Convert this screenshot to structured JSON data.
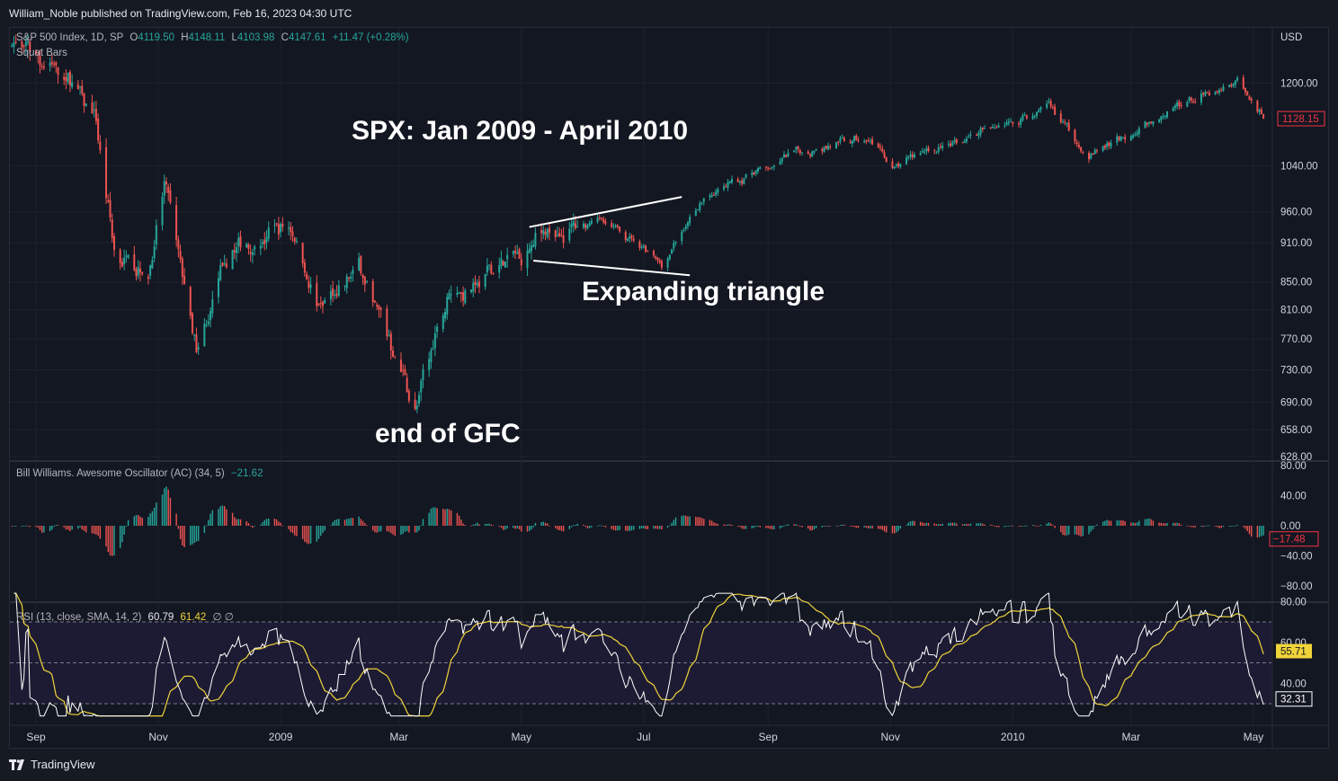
{
  "header": {
    "publisher": "William_Noble published on TradingView.com, Feb 16, 2023 04:30 UTC"
  },
  "footer": {
    "brand": "TradingView"
  },
  "legend_main": {
    "symbol": "S&P 500 Index, 1D, SP",
    "o_label": "O",
    "o": "4119.50",
    "h_label": "H",
    "h": "4148.11",
    "l_label": "L",
    "l": "4103.98",
    "c_label": "C",
    "c": "4147.61",
    "change": "+11.47 (+0.28%)",
    "study": "Squat Bars"
  },
  "legend_ao": {
    "label": "Bill Williams. Awesome Oscillator (AC) (34, 5)",
    "value": "−21.62"
  },
  "legend_rsi": {
    "label": "RSI (13, close, SMA, 14, 2)",
    "value": "60.79",
    "ma_value": "61.42",
    "extra": "∅ ∅"
  },
  "annotations": {
    "title": "SPX: Jan 2009 - April 2010",
    "triangle": "Expanding triangle",
    "gfc": "end of GFC"
  },
  "colors": {
    "up": "#26a69a",
    "down": "#ef5350",
    "rsi": "#ffffff",
    "rsi_ma": "#f0d43a",
    "last_price": "#f23645"
  },
  "chart_data": [
    {
      "type": "candlestick",
      "title": "SPX: Jan 2009 - April 2010",
      "currency": "USD",
      "scale": "log",
      "y_ticks": [
        "1200.00",
        "1040.00",
        "960.00",
        "910.00",
        "850.00",
        "810.00",
        "770.00",
        "730.00",
        "690.00",
        "658.00",
        "628.00"
      ],
      "last_price_label": "1128.15",
      "x_labels": [
        "Sep",
        "Nov",
        "2009",
        "Mar",
        "May",
        "Jul",
        "Sep",
        "Nov",
        "2010",
        "Mar",
        "May"
      ],
      "close_path": {
        "dates": [
          "2008-08-20",
          "2008-09-05",
          "2008-09-20",
          "2008-10-01",
          "2008-10-10",
          "2008-10-27",
          "2008-11-04",
          "2008-11-20",
          "2008-12-08",
          "2009-01-06",
          "2009-01-20",
          "2009-02-09",
          "2009-03-09",
          "2009-03-26",
          "2009-05-01",
          "2009-05-08",
          "2009-06-12",
          "2009-07-10",
          "2009-07-31",
          "2009-09-18",
          "2009-10-21",
          "2009-11-02",
          "2010-01-19",
          "2010-02-08",
          "2010-04-23",
          "2010-05-06"
        ],
        "close": [
          1290,
          1245,
          1210,
          1115,
          900,
          860,
          1005,
          755,
          910,
          935,
          815,
          870,
          680,
          830,
          890,
          925,
          945,
          875,
          985,
          1065,
          1095,
          1040,
          1150,
          1058,
          1215,
          1128
        ]
      },
      "series": [
        {
          "name": "Upper trendline",
          "x": [
            "2009-05-05",
            "2009-07-20"
          ],
          "y": [
            935,
            985
          ]
        },
        {
          "name": "Lower trendline",
          "x": [
            "2009-05-07",
            "2009-07-24"
          ],
          "y": [
            882,
            860
          ]
        }
      ],
      "annotations": [
        "SPX: Jan 2009 - April 2010",
        "Expanding triangle",
        "end of GFC"
      ]
    },
    {
      "type": "bar",
      "title": "Bill Williams. Awesome Oscillator (AC) (34, 5)",
      "y_ticks": [
        "80.00",
        "40.00",
        "0.00",
        "−40.00",
        "−80.00"
      ],
      "last_value_label": "−17.48",
      "extremes": {
        "max": 48,
        "min": -55
      }
    },
    {
      "type": "line",
      "title": "RSI (13, close, SMA, 14, 2)",
      "y_ticks": [
        "80.00",
        "60.00",
        "40.00"
      ],
      "bands": [
        30,
        50,
        70
      ],
      "series": [
        {
          "name": "RSI",
          "last_label": "32.31"
        },
        {
          "name": "MA",
          "last_label": "55.71"
        }
      ]
    }
  ]
}
